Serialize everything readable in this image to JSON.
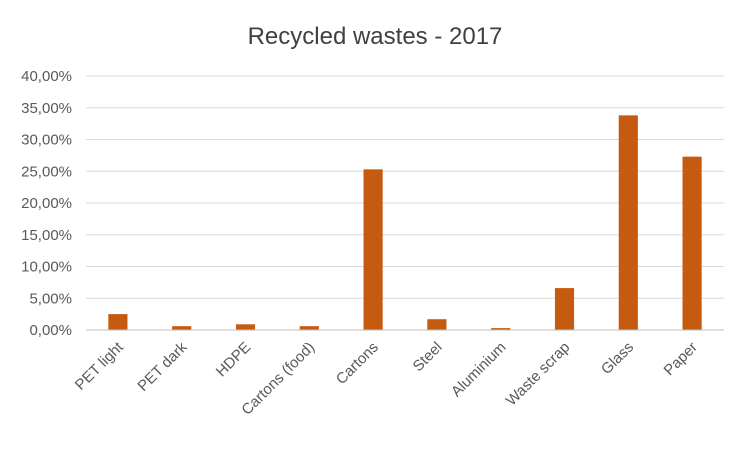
{
  "chart_data": {
    "type": "bar",
    "title": "Recycled wastes - 2017",
    "xlabel": "",
    "ylabel": "",
    "categories": [
      "PET light",
      "PET dark",
      "HDPE",
      "Cartons (food)",
      "Cartons",
      "Steel",
      "Aluminium",
      "Waste scrap",
      "Glass",
      "Paper"
    ],
    "values": [
      2.5,
      0.6,
      0.9,
      0.6,
      25.3,
      1.7,
      0.3,
      6.6,
      33.8,
      27.3
    ],
    "unit": "%",
    "ylim": [
      0,
      40
    ],
    "yticks": [
      "0,00%",
      "5,00%",
      "10,00%",
      "15,00%",
      "20,00%",
      "25,00%",
      "30,00%",
      "35,00%",
      "40,00%"
    ],
    "grid": true,
    "legend": "none",
    "bar_color": "#C55A11"
  }
}
